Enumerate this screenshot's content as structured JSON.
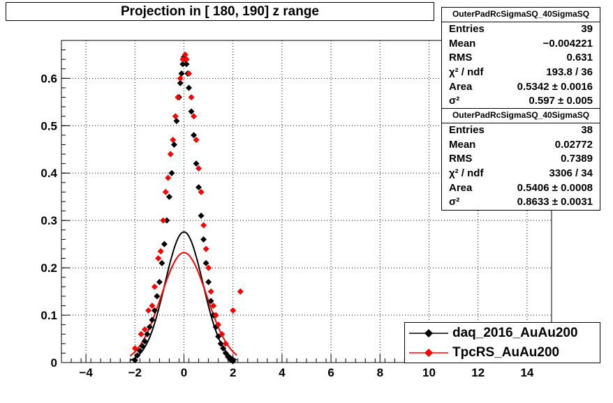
{
  "title": "Projection in [ 180, 190] z range",
  "stats_boxes": [
    {
      "name": "OuterPadRcSigmaSQ_40SigmaSQ",
      "rows": [
        {
          "label": "Entries",
          "value": "39"
        },
        {
          "label": "Mean",
          "value": "−0.004221"
        },
        {
          "label": "RMS",
          "value": "0.631"
        },
        {
          "label": "χ² / ndf",
          "value": "193.8 / 36"
        },
        {
          "label": "Area",
          "value": "0.5342 ± 0.0016"
        },
        {
          "label": "σ²",
          "value": "0.597 ± 0.005"
        }
      ]
    },
    {
      "name": "OuterPadRcSigmaSQ_40SigmaSQ",
      "rows": [
        {
          "label": "Entries",
          "value": "38"
        },
        {
          "label": "Mean",
          "value": "0.02772"
        },
        {
          "label": "RMS",
          "value": "0.7389"
        },
        {
          "label": "χ² / ndf",
          "value": "3306 / 34"
        },
        {
          "label": "Area",
          "value": "0.5406 ± 0.0008"
        },
        {
          "label": "σ²",
          "value": "0.8633 ± 0.0031"
        }
      ]
    }
  ],
  "colors": {
    "daq": "#000000",
    "tpcrs": "#ff0000"
  },
  "chart_data": {
    "type": "scatter",
    "title": "Projection in [ 180, 190] z range",
    "xlim": [
      -5,
      15
    ],
    "ylim": [
      0,
      0.68
    ],
    "x_ticks": [
      -4,
      -2,
      0,
      2,
      4,
      6,
      8,
      10,
      12,
      14
    ],
    "y_ticks": [
      0,
      0.1,
      0.2,
      0.3,
      0.4,
      0.5,
      0.6
    ],
    "grid": true,
    "legend": "bottom-right",
    "series": [
      {
        "name": "daq_2016_AuAu200",
        "color": "#000000",
        "fit": {
          "area": 0.5342,
          "sigma2": 0.597
        },
        "points": [
          [
            -2.0,
            0.005
          ],
          [
            -1.9,
            0.015
          ],
          [
            -1.8,
            0.025
          ],
          [
            -1.7,
            0.035
          ],
          [
            -1.6,
            0.045
          ],
          [
            -1.5,
            0.06
          ],
          [
            -1.4,
            0.075
          ],
          [
            -1.3,
            0.09
          ],
          [
            -1.2,
            0.11
          ],
          [
            -1.1,
            0.14
          ],
          [
            -1.0,
            0.17
          ],
          [
            -0.9,
            0.21
          ],
          [
            -0.8,
            0.25
          ],
          [
            -0.7,
            0.3
          ],
          [
            -0.6,
            0.35
          ],
          [
            -0.5,
            0.4
          ],
          [
            -0.4,
            0.46
          ],
          [
            -0.3,
            0.51
          ],
          [
            -0.2,
            0.56
          ],
          [
            -0.15,
            0.59
          ],
          [
            -0.1,
            0.61
          ],
          [
            -0.05,
            0.63
          ],
          [
            0.0,
            0.645
          ],
          [
            0.05,
            0.64
          ],
          [
            0.1,
            0.63
          ],
          [
            0.15,
            0.61
          ],
          [
            0.2,
            0.58
          ],
          [
            0.3,
            0.53
          ],
          [
            0.4,
            0.48
          ],
          [
            0.5,
            0.42
          ],
          [
            0.6,
            0.37
          ],
          [
            0.7,
            0.31
          ],
          [
            0.8,
            0.26
          ],
          [
            0.9,
            0.21
          ],
          [
            1.0,
            0.17
          ],
          [
            1.1,
            0.13
          ],
          [
            1.2,
            0.1
          ],
          [
            1.3,
            0.075
          ],
          [
            1.4,
            0.055
          ],
          [
            1.5,
            0.04
          ],
          [
            1.6,
            0.03
          ],
          [
            1.7,
            0.02
          ],
          [
            1.8,
            0.012
          ],
          [
            1.9,
            0.006
          ],
          [
            2.0,
            0.003
          ]
        ]
      },
      {
        "name": "TpcRS_AuAu200",
        "color": "#ff0000",
        "fit": {
          "area": 0.5406,
          "sigma2": 0.8633
        },
        "points": [
          [
            -2.0,
            0.03
          ],
          [
            -1.75,
            0.06
          ],
          [
            -1.6,
            0.07
          ],
          [
            -1.45,
            0.11
          ],
          [
            -1.3,
            0.12
          ],
          [
            -1.2,
            0.16
          ],
          [
            -1.05,
            0.22
          ],
          [
            -0.95,
            0.235
          ],
          [
            -0.85,
            0.3
          ],
          [
            -0.75,
            0.36
          ],
          [
            -0.65,
            0.39
          ],
          [
            -0.55,
            0.44
          ],
          [
            -0.45,
            0.47
          ],
          [
            -0.35,
            0.52
          ],
          [
            -0.25,
            0.56
          ],
          [
            -0.15,
            0.6
          ],
          [
            -0.05,
            0.64
          ],
          [
            0.05,
            0.65
          ],
          [
            0.1,
            0.64
          ],
          [
            0.2,
            0.61
          ],
          [
            0.3,
            0.56
          ],
          [
            0.4,
            0.52
          ],
          [
            0.5,
            0.47
          ],
          [
            0.6,
            0.41
          ],
          [
            0.7,
            0.36
          ],
          [
            0.8,
            0.29
          ],
          [
            0.9,
            0.24
          ],
          [
            1.0,
            0.2
          ],
          [
            1.1,
            0.15
          ],
          [
            1.2,
            0.12
          ],
          [
            1.3,
            0.1
          ],
          [
            1.4,
            0.08
          ],
          [
            1.55,
            0.06
          ],
          [
            1.7,
            0.04
          ],
          [
            2.0,
            0.11
          ],
          [
            2.3,
            0.15
          ]
        ]
      }
    ]
  }
}
